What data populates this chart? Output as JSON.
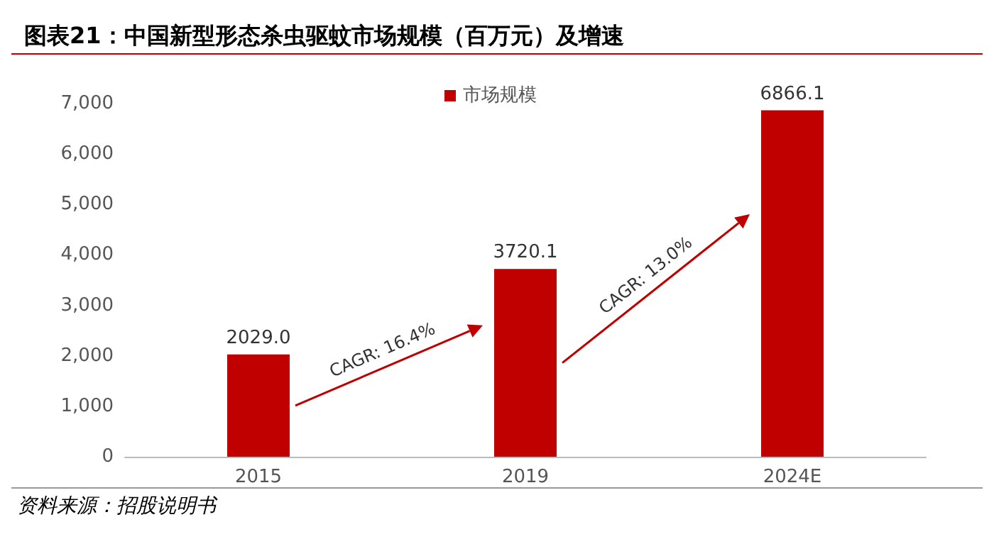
{
  "chart_data": {
    "type": "bar",
    "title": "图表21：中国新型形态杀虫驱蚊市场规模（百万元）及增速",
    "categories": [
      "2015",
      "2019",
      "2024E"
    ],
    "series": [
      {
        "name": "市场规模",
        "color": "#c00000",
        "values": [
          2029,
          3720.1,
          6866.1
        ],
        "value_labels": [
          "2029.0",
          "3720.1",
          "6866.1"
        ]
      }
    ],
    "ylim": [
      0,
      7000
    ],
    "yticks": [
      0,
      {
        "value": 1000,
        "label": "1,000"
      },
      {
        "value": 2000,
        "label": "2,000"
      },
      {
        "value": 3000,
        "label": "3,000"
      },
      {
        "value": 4000,
        "label": "4,000"
      },
      {
        "value": 5000,
        "label": "5,000"
      },
      {
        "value": 6000,
        "label": "6,000"
      },
      {
        "value": 7000,
        "label": "7,000"
      }
    ],
    "grid": false,
    "legend": "top",
    "annotations": [
      "CAGR: 16.4%",
      "CAGR: 13.0%",
      "资料来源：招股说明书"
    ]
  }
}
